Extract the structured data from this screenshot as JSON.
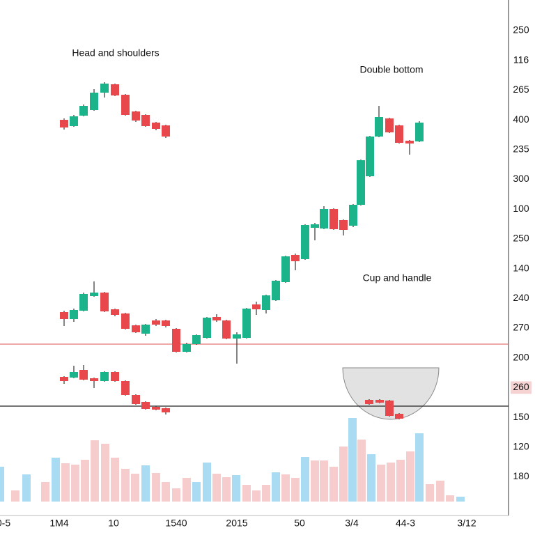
{
  "chart_data": {
    "type": "candlestick",
    "ylim": [
      0,
      740
    ],
    "xlim": [
      0,
      730
    ],
    "up_color": "#1bb38a",
    "down_color": "#e8474b",
    "y_labels": [
      "250",
      "116",
      "265",
      "400",
      "235",
      "300",
      "100",
      "250",
      "140",
      "240",
      "270",
      "200",
      "260",
      "150",
      "120",
      "180"
    ],
    "x_labels": [
      "0-5",
      "1M4",
      "10",
      "1540",
      "2015",
      "50",
      "3/4",
      "44-3",
      "3/12"
    ],
    "annotations": [
      "Head and shoulders",
      "Double bottom",
      "Cup and handle"
    ],
    "hlines": [
      {
        "value": 246,
        "color": "#e57373"
      },
      {
        "value": 157,
        "color": "#222222"
      }
    ],
    "series": [
      {
        "x": [
          92,
          106,
          120,
          135,
          150,
          165,
          180,
          195,
          209,
          224,
          238
        ],
        "open": [
          568,
          559,
          574,
          582,
          607,
          619,
          604,
          580,
          575,
          564,
          560
        ],
        "high": [
          570,
          575,
          590,
          612,
          622,
          620,
          605,
          581,
          576,
          565,
          561
        ],
        "low": [
          554,
          558,
          573,
          581,
          600,
          602,
          574,
          565,
          558,
          553,
          542
        ],
        "close": [
          557,
          573,
          588,
          607,
          620,
          603,
          575,
          567,
          559,
          555,
          544
        ]
      },
      {
        "x": [
          92,
          106,
          120,
          135,
          150,
          165,
          180,
          195,
          209,
          224,
          238,
          253,
          268,
          282,
          297,
          311,
          325,
          340,
          354,
          368,
          382,
          396,
          410,
          424,
          438,
          452,
          465,
          479,
          493,
          507,
          518,
          531,
          544,
          559,
          573,
          588,
          602
        ],
        "open": [
          292,
          282,
          294,
          315,
          320,
          296,
          290,
          273,
          261,
          280,
          280,
          268,
          235,
          246,
          255,
          285,
          280,
          254,
          255,
          303,
          295,
          309,
          335,
          374,
          368,
          413,
          412,
          440,
          424,
          416,
          446,
          487,
          544,
          570,
          560,
          538,
          537
        ],
        "high": [
          294,
          297,
          320,
          336,
          321,
          297,
          291,
          274,
          275,
          282,
          281,
          269,
          248,
          260,
          285,
          289,
          281,
          263,
          298,
          307,
          317,
          338,
          373,
          376,
          418,
          420,
          444,
          441,
          425,
          447,
          511,
          545,
          588,
          571,
          561,
          539,
          566
        ],
        "low": [
          272,
          278,
          293,
          314,
          292,
          286,
          267,
          262,
          258,
          272,
          270,
          234,
          234,
          245,
          254,
          278,
          253,
          218,
          254,
          288,
          290,
          308,
          334,
          352,
          367,
          395,
          411,
          410,
          402,
          414,
          445,
          486,
          543,
          549,
          534,
          518,
          536
        ],
        "close": [
          282,
          295,
          318,
          320,
          293,
          288,
          268,
          263,
          274,
          274,
          272,
          235,
          246,
          259,
          284,
          280,
          254,
          260,
          297,
          296,
          316,
          337,
          372,
          365,
          417,
          418,
          440,
          411,
          410,
          446,
          510,
          544,
          572,
          550,
          535,
          534,
          564
        ]
      },
      {
        "x": [
          92,
          106,
          120,
          135,
          150,
          165,
          180,
          195,
          209,
          224,
          238,
          530,
          545,
          559,
          573
        ],
        "open": [
          199,
          198,
          209,
          197,
          193,
          206,
          193,
          173,
          163,
          156,
          154,
          166,
          166,
          165,
          146
        ],
        "high": [
          200,
          215,
          216,
          198,
          207,
          207,
          194,
          174,
          164,
          157,
          155,
          167,
          167,
          166,
          147
        ],
        "low": [
          189,
          197,
          194,
          183,
          192,
          192,
          172,
          159,
          152,
          151,
          145,
          159,
          161,
          142,
          138
        ],
        "close": [
          193,
          206,
          195,
          193,
          206,
          193,
          173,
          160,
          153,
          152,
          148,
          160,
          162,
          143,
          139
        ]
      }
    ],
    "volume": {
      "x": [
        0,
        22,
        38,
        65,
        80,
        94,
        108,
        122,
        136,
        151,
        165,
        180,
        194,
        209,
        224,
        238,
        253,
        268,
        282,
        297,
        311,
        325,
        339,
        354,
        368,
        382,
        396,
        410,
        424,
        438,
        452,
        465,
        479,
        493,
        506,
        519,
        533,
        547,
        561,
        575,
        589,
        602,
        617,
        632,
        646,
        661
      ],
      "values": [
        50,
        16,
        39,
        28,
        63,
        55,
        53,
        60,
        88,
        83,
        63,
        47,
        40,
        52,
        41,
        28,
        19,
        34,
        28,
        56,
        40,
        35,
        38,
        24,
        16,
        24,
        42,
        39,
        34,
        64,
        59,
        59,
        50,
        79,
        120,
        89,
        68,
        53,
        56,
        60,
        72,
        98,
        25,
        30,
        9,
        7
      ],
      "colors": [
        "#a9dcf2",
        "#f7cccc",
        "#a9dcf2",
        "#f7cccc",
        "#a9dcf2",
        "#f7cccc",
        "#f7cccc",
        "#f7cccc",
        "#f7cccc",
        "#f7cccc",
        "#f7cccc",
        "#f7cccc",
        "#f7cccc",
        "#a9dcf2",
        "#f7cccc",
        "#f7cccc",
        "#f7cccc",
        "#f7cccc",
        "#a9dcf2",
        "#a9dcf2",
        "#f7cccc",
        "#f7cccc",
        "#a9dcf2",
        "#f7cccc",
        "#f7cccc",
        "#f7cccc",
        "#a9dcf2",
        "#f7cccc",
        "#f7cccc",
        "#a9dcf2",
        "#f7cccc",
        "#f7cccc",
        "#f7cccc",
        "#f7cccc",
        "#a9dcf2",
        "#f7cccc",
        "#a9dcf2",
        "#f7cccc",
        "#f7cccc",
        "#f7cccc",
        "#f7cccc",
        "#a9dcf2",
        "#f7cccc",
        "#f7cccc",
        "#f7cccc",
        "#a9dcf2"
      ]
    }
  }
}
